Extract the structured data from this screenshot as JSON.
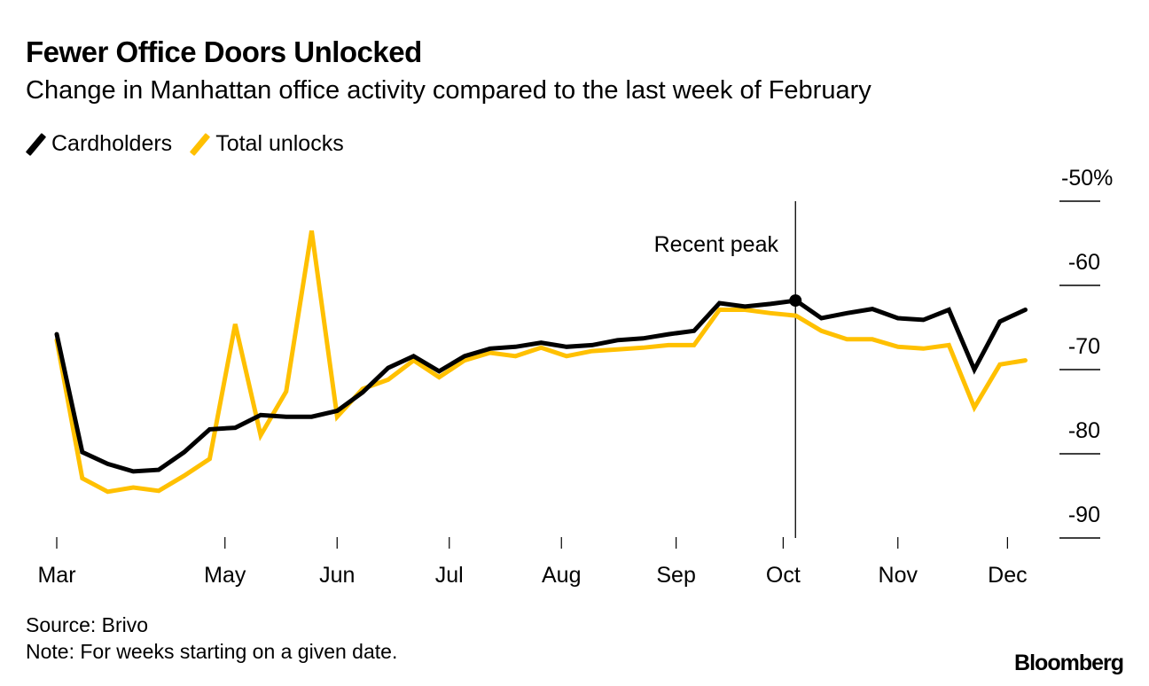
{
  "header": {
    "title": "Fewer Office Doors Unlocked",
    "subtitle": "Change in Manhattan office activity compared to the last week of February"
  },
  "footer": {
    "source": "Source: Brivo",
    "note": "Note: For weeks starting on a given date.",
    "brand": "Bloomberg"
  },
  "chart_data": {
    "type": "line",
    "title": "Fewer Office Doors Unlocked",
    "subtitle": "Change in Manhattan office activity compared to the last week of February",
    "xlabel": "",
    "ylabel": "",
    "x_tick_labels": [
      "Mar",
      "May",
      "Jun",
      "Jul",
      "Aug",
      "Sep",
      "Oct",
      "Nov",
      "Dec"
    ],
    "x_tick_week_index": [
      0,
      6.6,
      11,
      15.4,
      19.8,
      24.3,
      28.5,
      33,
      37.3
    ],
    "y_ticks": [
      -50,
      -60,
      -70,
      -80,
      -90
    ],
    "y_tick_labels": [
      "-50%",
      "-60",
      "-70",
      "-80",
      "-90"
    ],
    "ylim": [
      -92,
      -47
    ],
    "grid": false,
    "legend_position": "top-left",
    "series": [
      {
        "name": "Cardholders",
        "color": "#000000",
        "values": [
          -65.8,
          -79.8,
          -81.2,
          -82.1,
          -81.9,
          -79.8,
          -77.1,
          -76.9,
          -75.4,
          -75.6,
          -75.6,
          -74.9,
          -72.7,
          -69.8,
          -68.4,
          -70.2,
          -68.4,
          -67.5,
          -67.3,
          -66.8,
          -67.3,
          -67.1,
          -66.5,
          -66.3,
          -65.8,
          -65.4,
          -62.1,
          -62.5,
          -62.2,
          -61.8,
          -63.9,
          -63.3,
          -62.8,
          -63.9,
          -64.1,
          -62.9,
          -70.0,
          -64.3,
          -62.9
        ]
      },
      {
        "name": "Total unlocks",
        "color": "#ffc000",
        "values": [
          -66.5,
          -82.9,
          -84.5,
          -84.0,
          -84.4,
          -82.6,
          -80.6,
          -64.6,
          -77.8,
          -72.6,
          -53.5,
          -75.6,
          -72.3,
          -71.2,
          -68.9,
          -70.9,
          -68.9,
          -68.0,
          -68.4,
          -67.4,
          -68.4,
          -67.8,
          -67.6,
          -67.4,
          -67.1,
          -67.1,
          -62.9,
          -62.9,
          -63.3,
          -63.6,
          -65.4,
          -66.4,
          -66.4,
          -67.3,
          -67.5,
          -67.1,
          -74.5,
          -69.4,
          -68.9
        ]
      }
    ],
    "annotations": [
      {
        "text": "Recent peak",
        "week_index": 29,
        "series": "Cardholders",
        "value": -61.8
      }
    ]
  }
}
